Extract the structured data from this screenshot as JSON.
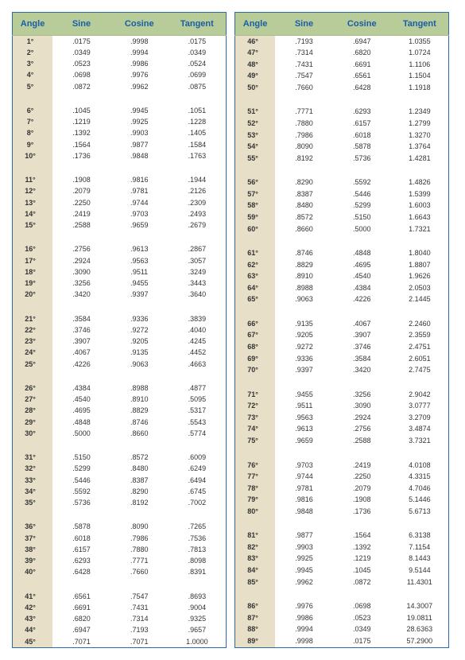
{
  "headers": {
    "angle": "Angle",
    "sine": "Sine",
    "cosine": "Cosine",
    "tangent": "Tangent"
  },
  "style": {
    "border_color": "#2a6ab0",
    "header_bg": "#b8cc99",
    "header_text": "#1a5da8",
    "angle_col_bg": "#e8dfc9",
    "font_size_header": 11,
    "font_size_body": 9,
    "background": "#ffffff"
  },
  "left": [
    {
      "a": "1°",
      "s": ".0175",
      "c": ".9998",
      "t": ".0175"
    },
    {
      "a": "2°",
      "s": ".0349",
      "c": ".9994",
      "t": ".0349"
    },
    {
      "a": "3°",
      "s": ".0523",
      "c": ".9986",
      "t": ".0524"
    },
    {
      "a": "4°",
      "s": ".0698",
      "c": ".9976",
      "t": ".0699"
    },
    {
      "a": "5°",
      "s": ".0872",
      "c": ".9962",
      "t": ".0875"
    },
    {
      "gap": true
    },
    {
      "a": "6°",
      "s": ".1045",
      "c": ".9945",
      "t": ".1051"
    },
    {
      "a": "7°",
      "s": ".1219",
      "c": ".9925",
      "t": ".1228"
    },
    {
      "a": "8°",
      "s": ".1392",
      "c": ".9903",
      "t": ".1405"
    },
    {
      "a": "9°",
      "s": ".1564",
      "c": ".9877",
      "t": ".1584"
    },
    {
      "a": "10°",
      "s": ".1736",
      "c": ".9848",
      "t": ".1763"
    },
    {
      "gap": true
    },
    {
      "a": "11°",
      "s": ".1908",
      "c": ".9816",
      "t": ".1944"
    },
    {
      "a": "12°",
      "s": ".2079",
      "c": ".9781",
      "t": ".2126"
    },
    {
      "a": "13°",
      "s": ".2250",
      "c": ".9744",
      "t": ".2309"
    },
    {
      "a": "14°",
      "s": ".2419",
      "c": ".9703",
      "t": ".2493"
    },
    {
      "a": "15°",
      "s": ".2588",
      "c": ".9659",
      "t": ".2679"
    },
    {
      "gap": true
    },
    {
      "a": "16°",
      "s": ".2756",
      "c": ".9613",
      "t": ".2867"
    },
    {
      "a": "17°",
      "s": ".2924",
      "c": ".9563",
      "t": ".3057"
    },
    {
      "a": "18°",
      "s": ".3090",
      "c": ".9511",
      "t": ".3249"
    },
    {
      "a": "19°",
      "s": ".3256",
      "c": ".9455",
      "t": ".3443"
    },
    {
      "a": "20°",
      "s": ".3420",
      "c": ".9397",
      "t": ".3640"
    },
    {
      "gap": true
    },
    {
      "a": "21°",
      "s": ".3584",
      "c": ".9336",
      "t": ".3839"
    },
    {
      "a": "22°",
      "s": ".3746",
      "c": ".9272",
      "t": ".4040"
    },
    {
      "a": "23°",
      "s": ".3907",
      "c": ".9205",
      "t": ".4245"
    },
    {
      "a": "24°",
      "s": ".4067",
      "c": ".9135",
      "t": ".4452"
    },
    {
      "a": "25°",
      "s": ".4226",
      "c": ".9063",
      "t": ".4663"
    },
    {
      "gap": true
    },
    {
      "a": "26°",
      "s": ".4384",
      "c": ".8988",
      "t": ".4877"
    },
    {
      "a": "27°",
      "s": ".4540",
      "c": ".8910",
      "t": ".5095"
    },
    {
      "a": "28°",
      "s": ".4695",
      "c": ".8829",
      "t": ".5317"
    },
    {
      "a": "29°",
      "s": ".4848",
      "c": ".8746",
      "t": ".5543"
    },
    {
      "a": "30°",
      "s": ".5000",
      "c": ".8660",
      "t": ".5774"
    },
    {
      "gap": true
    },
    {
      "a": "31°",
      "s": ".5150",
      "c": ".8572",
      "t": ".6009"
    },
    {
      "a": "32°",
      "s": ".5299",
      "c": ".8480",
      "t": ".6249"
    },
    {
      "a": "33°",
      "s": ".5446",
      "c": ".8387",
      "t": ".6494"
    },
    {
      "a": "34°",
      "s": ".5592",
      "c": ".8290",
      "t": ".6745"
    },
    {
      "a": "35°",
      "s": ".5736",
      "c": ".8192",
      "t": ".7002"
    },
    {
      "gap": true
    },
    {
      "a": "36°",
      "s": ".5878",
      "c": ".8090",
      "t": ".7265"
    },
    {
      "a": "37°",
      "s": ".6018",
      "c": ".7986",
      "t": ".7536"
    },
    {
      "a": "38°",
      "s": ".6157",
      "c": ".7880",
      "t": ".7813"
    },
    {
      "a": "39°",
      "s": ".6293",
      "c": ".7771",
      "t": ".8098"
    },
    {
      "a": "40°",
      "s": ".6428",
      "c": ".7660",
      "t": ".8391"
    },
    {
      "gap": true
    },
    {
      "a": "41°",
      "s": ".6561",
      "c": ".7547",
      "t": ".8693"
    },
    {
      "a": "42°",
      "s": ".6691",
      "c": ".7431",
      "t": ".9004"
    },
    {
      "a": "43°",
      "s": ".6820",
      "c": ".7314",
      "t": ".9325"
    },
    {
      "a": "44°",
      "s": ".6947",
      "c": ".7193",
      "t": ".9657"
    },
    {
      "a": "45°",
      "s": ".7071",
      "c": ".7071",
      "t": "1.0000"
    }
  ],
  "right": [
    {
      "a": "46°",
      "s": ".7193",
      "c": ".6947",
      "t": "1.0355"
    },
    {
      "a": "47°",
      "s": ".7314",
      "c": ".6820",
      "t": "1.0724"
    },
    {
      "a": "48°",
      "s": ".7431",
      "c": ".6691",
      "t": "1.1106"
    },
    {
      "a": "49°",
      "s": ".7547",
      "c": ".6561",
      "t": "1.1504"
    },
    {
      "a": "50°",
      "s": ".7660",
      "c": ".6428",
      "t": "1.1918"
    },
    {
      "gap": true
    },
    {
      "a": "51°",
      "s": ".7771",
      "c": ".6293",
      "t": "1.2349"
    },
    {
      "a": "52°",
      "s": ".7880",
      "c": ".6157",
      "t": "1.2799"
    },
    {
      "a": "53°",
      "s": ".7986",
      "c": ".6018",
      "t": "1.3270"
    },
    {
      "a": "54°",
      "s": ".8090",
      "c": ".5878",
      "t": "1.3764"
    },
    {
      "a": "55°",
      "s": ".8192",
      "c": ".5736",
      "t": "1.4281"
    },
    {
      "gap": true
    },
    {
      "a": "56°",
      "s": ".8290",
      "c": ".5592",
      "t": "1.4826"
    },
    {
      "a": "57°",
      "s": ".8387",
      "c": ".5446",
      "t": "1.5399"
    },
    {
      "a": "58°",
      "s": ".8480",
      "c": ".5299",
      "t": "1.6003"
    },
    {
      "a": "59°",
      "s": ".8572",
      "c": ".5150",
      "t": "1.6643"
    },
    {
      "a": "60°",
      "s": ".8660",
      "c": ".5000",
      "t": "1.7321"
    },
    {
      "gap": true
    },
    {
      "a": "61°",
      "s": ".8746",
      "c": ".4848",
      "t": "1.8040"
    },
    {
      "a": "62°",
      "s": ".8829",
      "c": ".4695",
      "t": "1.8807"
    },
    {
      "a": "63°",
      "s": ".8910",
      "c": ".4540",
      "t": "1.9626"
    },
    {
      "a": "64°",
      "s": ".8988",
      "c": ".4384",
      "t": "2.0503"
    },
    {
      "a": "65°",
      "s": ".9063",
      "c": ".4226",
      "t": "2.1445"
    },
    {
      "gap": true
    },
    {
      "a": "66°",
      "s": ".9135",
      "c": ".4067",
      "t": "2.2460"
    },
    {
      "a": "67°",
      "s": ".9205",
      "c": ".3907",
      "t": "2.3559"
    },
    {
      "a": "68°",
      "s": ".9272",
      "c": ".3746",
      "t": "2.4751"
    },
    {
      "a": "69°",
      "s": ".9336",
      "c": ".3584",
      "t": "2.6051"
    },
    {
      "a": "70°",
      "s": ".9397",
      "c": ".3420",
      "t": "2.7475"
    },
    {
      "gap": true
    },
    {
      "a": "71°",
      "s": ".9455",
      "c": ".3256",
      "t": "2.9042"
    },
    {
      "a": "72°",
      "s": ".9511",
      "c": ".3090",
      "t": "3.0777"
    },
    {
      "a": "73°",
      "s": ".9563",
      "c": ".2924",
      "t": "3.2709"
    },
    {
      "a": "74°",
      "s": ".9613",
      "c": ".2756",
      "t": "3.4874"
    },
    {
      "a": "75°",
      "s": ".9659",
      "c": ".2588",
      "t": "3.7321"
    },
    {
      "gap": true
    },
    {
      "a": "76°",
      "s": ".9703",
      "c": ".2419",
      "t": "4.0108"
    },
    {
      "a": "77°",
      "s": ".9744",
      "c": ".2250",
      "t": "4.3315"
    },
    {
      "a": "78°",
      "s": ".9781",
      "c": ".2079",
      "t": "4.7046"
    },
    {
      "a": "79°",
      "s": ".9816",
      "c": ".1908",
      "t": "5.1446"
    },
    {
      "a": "80°",
      "s": ".9848",
      "c": ".1736",
      "t": "5.6713"
    },
    {
      "gap": true
    },
    {
      "a": "81°",
      "s": ".9877",
      "c": ".1564",
      "t": "6.3138"
    },
    {
      "a": "82°",
      "s": ".9903",
      "c": ".1392",
      "t": "7.1154"
    },
    {
      "a": "83°",
      "s": ".9925",
      "c": ".1219",
      "t": "8.1443"
    },
    {
      "a": "84°",
      "s": ".9945",
      "c": ".1045",
      "t": "9.5144"
    },
    {
      "a": "85°",
      "s": ".9962",
      "c": ".0872",
      "t": "11.4301"
    },
    {
      "gap": true
    },
    {
      "a": "86°",
      "s": ".9976",
      "c": ".0698",
      "t": "14.3007"
    },
    {
      "a": "87°",
      "s": ".9986",
      "c": ".0523",
      "t": "19.0811"
    },
    {
      "a": "88°",
      "s": ".9994",
      "c": ".0349",
      "t": "28.6363"
    },
    {
      "a": "89°",
      "s": ".9998",
      "c": ".0175",
      "t": "57.2900"
    }
  ]
}
